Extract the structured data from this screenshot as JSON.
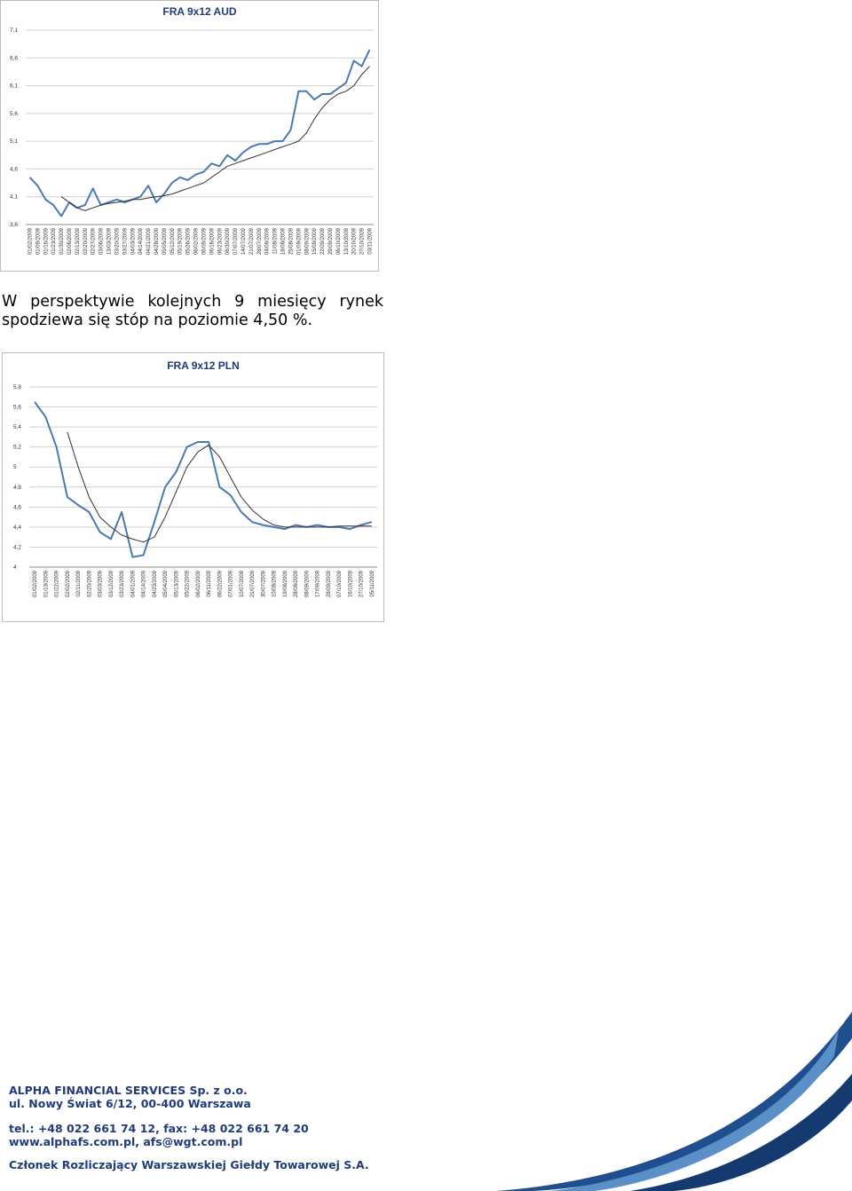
{
  "chart_data": [
    {
      "type": "line",
      "title": "FRA 9x12 AUD",
      "categories": [
        "01/02/2009",
        "01/09/2009",
        "01/16/2009",
        "01/23/2009",
        "01/30/2009",
        "02/06/2009",
        "02/13/2009",
        "02/20/2009",
        "02/27/2009",
        "03/06/2009",
        "13/03/2009",
        "03/20/2009",
        "03/27/2009",
        "04/03/2009",
        "04/14/2009",
        "04/21/2009",
        "04/28/2009",
        "05/05/2009",
        "05/12/2009",
        "05/19/2009",
        "05/26/2009",
        "06/02/2009",
        "06/09/2009",
        "06/16/2009",
        "06/23/2009",
        "06/30/2009",
        "07/07/2009",
        "14/07/2009",
        "21/07/2009",
        "28/07/2009",
        "04/08/2009",
        "11/08/2009",
        "18/08/2009",
        "25/08/2009",
        "01/09/2009",
        "08/09/2009",
        "15/09/2009",
        "22/09/2009",
        "29/09/2009",
        "06/10/2009",
        "13/10/2009",
        "20/10/2009",
        "27/10/2009",
        "03/11/2009"
      ],
      "series": [
        {
          "color": "#4a7ab0",
          "values": [
            4.45,
            4.3,
            4.05,
            3.95,
            3.75,
            4.0,
            3.9,
            3.95,
            4.25,
            3.95,
            4.0,
            4.05,
            4.0,
            4.05,
            4.1,
            4.3,
            4.0,
            4.15,
            4.35,
            4.45,
            4.4,
            4.5,
            4.55,
            4.7,
            4.65,
            4.85,
            4.75,
            4.9,
            5.0,
            5.05,
            5.05,
            5.1,
            5.1,
            5.3,
            6.0,
            6.0,
            5.85,
            5.95,
            5.95,
            6.05,
            6.15,
            6.55,
            6.45,
            6.75
          ]
        },
        {
          "color": "#333333",
          "values": [
            null,
            null,
            null,
            null,
            4.1,
            4.0,
            3.9,
            3.85,
            3.9,
            3.95,
            3.98,
            4.0,
            4.02,
            4.05,
            4.05,
            4.08,
            4.1,
            4.12,
            4.15,
            4.2,
            4.25,
            4.3,
            4.35,
            4.45,
            4.55,
            4.65,
            4.7,
            4.75,
            4.8,
            4.85,
            4.9,
            4.95,
            5.0,
            5.05,
            5.1,
            5.25,
            5.5,
            5.7,
            5.85,
            5.95,
            6.0,
            6.1,
            6.3,
            6.45
          ]
        }
      ],
      "ylim": [
        3.6,
        7.1
      ],
      "yticks": [
        {
          "value": 3.6,
          "label": "3,6"
        },
        {
          "value": 4.1,
          "label": "4,1"
        },
        {
          "value": 4.6,
          "label": "4,6"
        },
        {
          "value": 5.1,
          "label": "5,1"
        },
        {
          "value": 5.6,
          "label": "5,6"
        },
        {
          "value": 6.1,
          "label": "6,1"
        },
        {
          "value": 6.6,
          "label": "6,6"
        },
        {
          "value": 7.1,
          "label": "7,1"
        }
      ],
      "grid": true
    },
    {
      "type": "line",
      "title": "FRA 9x12 PLN",
      "categories": [
        "01/02/2009",
        "01/13/2009",
        "01/22/2009",
        "02/02/2009",
        "02/11/2009",
        "02/20/2009",
        "03/03/2009",
        "03/12/2009",
        "03/23/2009",
        "04/01/2009",
        "04/14/2009",
        "04/23/2009",
        "05/04/2009",
        "05/13/2009",
        "05/22/2009",
        "06/02/2009",
        "06/11/2009",
        "06/22/2009",
        "07/01/2009",
        "10/07/2009",
        "21/07/2009",
        "30/07/2009",
        "10/08/2009",
        "19/08/2009",
        "28/08/2009",
        "08/09/2009",
        "17/09/2009",
        "28/09/2009",
        "07/10/2009",
        "16/10/2009",
        "27/10/2009",
        "05/11/2009"
      ],
      "series": [
        {
          "color": "#4a7ab0",
          "values": [
            5.65,
            5.5,
            5.2,
            4.7,
            4.62,
            4.55,
            4.35,
            4.28,
            4.55,
            4.1,
            4.12,
            4.45,
            4.8,
            4.95,
            5.2,
            5.25,
            5.25,
            4.8,
            4.72,
            4.55,
            4.45,
            4.42,
            4.4,
            4.38,
            4.42,
            4.4,
            4.42,
            4.4,
            4.4,
            4.38,
            4.42,
            4.45
          ]
        },
        {
          "color": "#333333",
          "values": [
            null,
            null,
            null,
            5.35,
            5.0,
            4.7,
            4.5,
            4.4,
            4.32,
            4.28,
            4.25,
            4.3,
            4.5,
            4.75,
            5.0,
            5.15,
            5.22,
            5.1,
            4.9,
            4.7,
            4.57,
            4.48,
            4.42,
            4.4,
            4.4,
            4.4,
            4.4,
            4.4,
            4.41,
            4.41,
            4.41,
            4.41
          ]
        }
      ],
      "ylim": [
        4,
        5.8
      ],
      "yticks": [
        4,
        {
          "value": 4.2,
          "label": "4,2"
        },
        {
          "value": 4.4,
          "label": "4,4"
        },
        {
          "value": 4.6,
          "label": "4,6"
        },
        {
          "value": 4.8,
          "label": "4,8"
        },
        5,
        {
          "value": 5.2,
          "label": "5,2"
        },
        {
          "value": 5.4,
          "label": "5,4"
        },
        {
          "value": 5.6,
          "label": "5,6"
        },
        {
          "value": 5.8,
          "label": "5,8"
        }
      ],
      "grid": true
    }
  ],
  "text": {
    "lines": [
      "W perspektywie kolejnych 9 miesięcy rynek",
      "spodziewa się stóp na poziomie 4,50 %."
    ]
  },
  "footer": {
    "company": "ALPHA FINANCIAL SERVICES Sp. z o.o.",
    "address": "ul. Nowy Świat 6/12, 00-400 Warszawa",
    "phone": "tel.: +48 022 661 74 12, fax: +48 022 661 74 20",
    "web": "www.alphafs.com.pl, afs@wgt.com.pl",
    "membership": "Członek Rozliczający Warszawskiej Giełdy Towarowej S.A."
  }
}
